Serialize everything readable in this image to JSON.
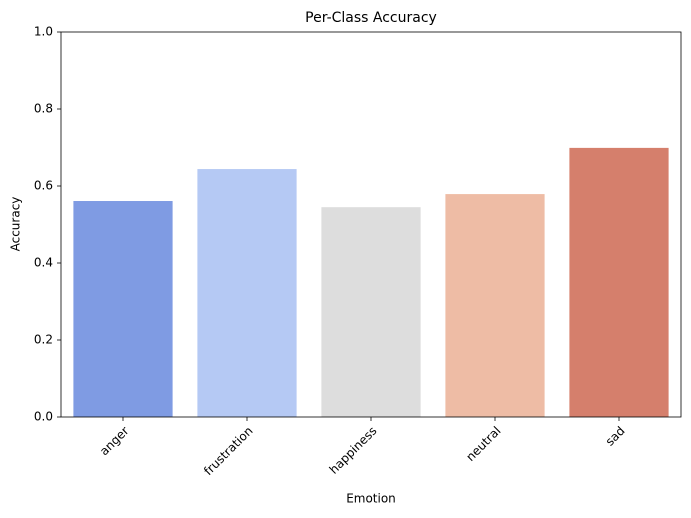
{
  "chart_data": {
    "type": "bar",
    "title": "Per-Class Accuracy",
    "x_label": "Emotion",
    "y_label": "Accuracy",
    "categories": [
      "anger",
      "frustration",
      "happiness",
      "neutral",
      "sad"
    ],
    "values": [
      0.561,
      0.644,
      0.545,
      0.579,
      0.699
    ],
    "colors": [
      "#7f9be3",
      "#b5c9f4",
      "#dddddd",
      "#eebca5",
      "#d57f6c"
    ],
    "ylim": [
      0,
      1
    ],
    "yticks": [
      {
        "value": 0,
        "label": "0.0"
      },
      0.2,
      0.4,
      0.6,
      0.8,
      {
        "value": 1,
        "label": "1.0"
      }
    ],
    "grid": false
  }
}
